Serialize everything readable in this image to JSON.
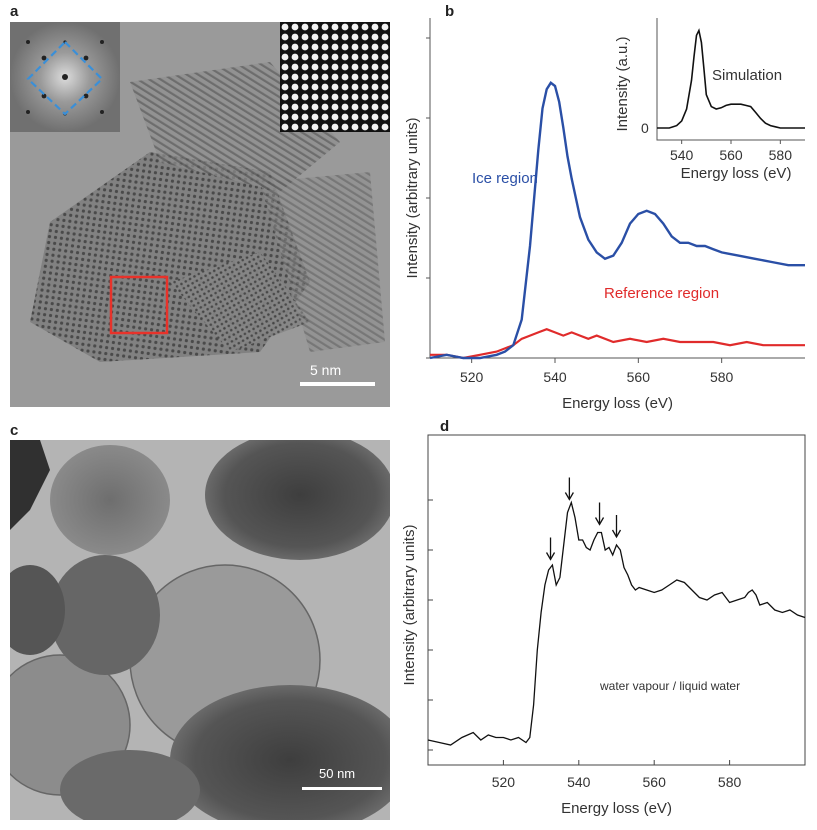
{
  "panels": {
    "a": {
      "label": "a",
      "scalebar": "5 nm"
    },
    "b": {
      "label": "b"
    },
    "c": {
      "label": "c",
      "scalebar": "50 nm"
    },
    "d": {
      "label": "d"
    }
  },
  "colors": {
    "ice": "#2a4fa6",
    "reference": "#e02b2b",
    "fft_box": "#3a8fd8",
    "roi_box": "#e8322a",
    "trace": "#111111"
  },
  "chart_data": [
    {
      "id": "b-main",
      "type": "line",
      "xlabel": "Energy loss (eV)",
      "ylabel": "Intensity (arbitrary units)",
      "xlim": [
        510,
        600
      ],
      "ylim": [
        0,
        100
      ],
      "xticks": [
        520,
        540,
        560,
        580
      ],
      "series": [
        {
          "name": "Ice region",
          "x": [
            510,
            514,
            518,
            522,
            526,
            528,
            530,
            532,
            534,
            536,
            537,
            538,
            539,
            540,
            541,
            542,
            543,
            544,
            546,
            548,
            550,
            552,
            554,
            556,
            558,
            560,
            562,
            564,
            566,
            568,
            570,
            572,
            574,
            576,
            578,
            580,
            584,
            588,
            592,
            596,
            600
          ],
          "values": [
            0,
            1,
            0,
            0,
            1,
            2,
            4,
            12,
            35,
            65,
            78,
            84,
            86,
            85,
            80,
            72,
            63,
            56,
            44,
            37,
            33,
            31,
            32,
            36,
            42,
            45,
            46,
            45,
            42,
            38,
            36,
            36,
            35,
            35,
            34,
            33,
            32,
            31,
            30,
            29,
            29
          ]
        },
        {
          "name": "Reference region",
          "x": [
            510,
            514,
            518,
            522,
            526,
            528,
            530,
            532,
            534,
            536,
            538,
            540,
            542,
            544,
            546,
            548,
            550,
            554,
            558,
            562,
            566,
            570,
            574,
            578,
            582,
            586,
            590,
            594,
            598,
            600
          ],
          "values": [
            1,
            1,
            0,
            1,
            2,
            3,
            4,
            6,
            7,
            8,
            9,
            8,
            7,
            8,
            7,
            6,
            7,
            5,
            6,
            5,
            6,
            5,
            5,
            5,
            4,
            5,
            4,
            4,
            4,
            4
          ]
        }
      ]
    },
    {
      "id": "b-inset",
      "type": "line",
      "title": "Simulation",
      "xlabel": "Energy loss (eV)",
      "ylabel": "Intensity (a.u.)",
      "xlim": [
        530,
        590
      ],
      "xticks": [
        540,
        560,
        580
      ],
      "yticks": [
        0
      ],
      "series": [
        {
          "x": [
            530,
            535,
            538,
            540,
            542,
            544,
            545,
            546,
            547,
            548,
            549,
            550,
            552,
            554,
            556,
            558,
            560,
            562,
            564,
            566,
            568,
            570,
            572,
            574,
            576,
            578,
            580,
            585,
            590
          ],
          "values": [
            0,
            0,
            2,
            6,
            16,
            40,
            60,
            78,
            82,
            72,
            50,
            28,
            18,
            16,
            17,
            19,
            20,
            20,
            20,
            19,
            18,
            13,
            8,
            4,
            2,
            1,
            0,
            0,
            0
          ]
        }
      ]
    },
    {
      "id": "d",
      "type": "line",
      "xlabel": "Energy loss (eV)",
      "ylabel": "Intensity (arbitrary units)",
      "annotation": "water vapour / liquid water",
      "xlim": [
        500,
        600
      ],
      "ylim": [
        0,
        100
      ],
      "xticks": [
        520,
        540,
        560,
        580
      ],
      "arrows_at": [
        532.5,
        537.5,
        545.5,
        550.0
      ],
      "series": [
        {
          "x": [
            500,
            503,
            506,
            509,
            512,
            514,
            516,
            518,
            520,
            522,
            524,
            526,
            527,
            528,
            529,
            530,
            531,
            532,
            533,
            534,
            535,
            536,
            537,
            538,
            539,
            540,
            541,
            542,
            543,
            544,
            545,
            546,
            547,
            548,
            549,
            550,
            551,
            552,
            553,
            554,
            555,
            556,
            558,
            560,
            562,
            564,
            566,
            568,
            570,
            572,
            574,
            576,
            578,
            580,
            582,
            584,
            585,
            586,
            587,
            588,
            590,
            592,
            594,
            596,
            598,
            600
          ],
          "values": [
            4,
            3,
            2,
            5,
            7,
            4,
            6,
            5,
            5,
            4,
            5,
            3,
            5,
            18,
            40,
            55,
            66,
            72,
            74,
            66,
            69,
            82,
            95,
            99,
            93,
            84,
            84,
            81,
            80,
            84,
            87,
            87,
            80,
            81,
            78,
            82,
            80,
            73,
            70,
            66,
            64,
            65,
            64,
            63,
            64,
            66,
            68,
            67,
            64,
            61,
            60,
            62,
            63,
            59,
            60,
            61,
            63,
            64,
            62,
            58,
            59,
            56,
            55,
            56,
            54,
            53
          ]
        }
      ]
    }
  ]
}
